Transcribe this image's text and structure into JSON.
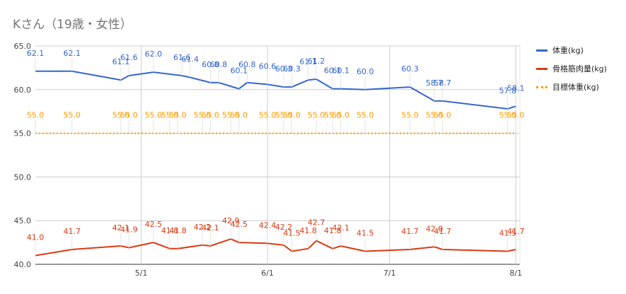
{
  "title": "Kさん（19歳・女性）",
  "chart_data": {
    "type": "line",
    "ylim": [
      40,
      65
    ],
    "yticks": [
      {
        "value": 40,
        "label": "40.0"
      },
      {
        "value": 45,
        "label": "45.0"
      },
      {
        "value": 50,
        "label": "50.0"
      },
      {
        "value": 55,
        "label": "55.0"
      },
      {
        "value": 60,
        "label": "60.0"
      },
      {
        "value": 65,
        "label": "65.0"
      }
    ],
    "xlim": [
      "2019-04-05",
      "2019-08-02"
    ],
    "xticks": [
      {
        "date": "2019-05-01",
        "label": "5/1"
      },
      {
        "date": "2019-06-01",
        "label": "6/1"
      },
      {
        "date": "2019-07-01",
        "label": "7/1"
      },
      {
        "date": "2019-08-01",
        "label": "8/1"
      }
    ],
    "grid": true,
    "legend_position": "right",
    "series": [
      {
        "name": "体重(kg)",
        "color": "#3366cc",
        "style": "solid",
        "x": [
          "2019-04-05",
          "2019-04-14",
          "2019-04-26",
          "2019-04-28",
          "2019-05-04",
          "2019-05-11",
          "2019-05-13",
          "2019-05-18",
          "2019-05-20",
          "2019-05-25",
          "2019-05-27",
          "2019-06-01",
          "2019-06-05",
          "2019-06-07",
          "2019-06-11",
          "2019-06-13",
          "2019-06-17",
          "2019-06-19",
          "2019-06-25",
          "2019-07-06",
          "2019-07-12",
          "2019-07-14",
          "2019-07-30",
          "2019-08-01"
        ],
        "values": [
          62.1,
          62.1,
          61.1,
          61.6,
          62.0,
          61.6,
          61.4,
          60.8,
          60.8,
          60.1,
          60.8,
          60.6,
          60.3,
          60.3,
          61.1,
          61.2,
          60.1,
          60.1,
          60.0,
          60.3,
          58.7,
          58.7,
          57.8,
          58.1
        ]
      },
      {
        "name": "骨格筋肉量(kg)",
        "color": "#dc3912",
        "style": "solid",
        "x": [
          "2019-04-05",
          "2019-04-14",
          "2019-04-26",
          "2019-04-28",
          "2019-05-04",
          "2019-05-08",
          "2019-05-10",
          "2019-05-16",
          "2019-05-18",
          "2019-05-23",
          "2019-05-25",
          "2019-06-01",
          "2019-06-05",
          "2019-06-07",
          "2019-06-11",
          "2019-06-13",
          "2019-06-17",
          "2019-06-19",
          "2019-06-25",
          "2019-07-06",
          "2019-07-12",
          "2019-07-14",
          "2019-07-30",
          "2019-08-01"
        ],
        "values": [
          41.0,
          41.7,
          42.1,
          41.9,
          42.5,
          41.8,
          41.8,
          42.2,
          42.1,
          42.9,
          42.5,
          42.4,
          42.2,
          41.5,
          41.8,
          42.7,
          41.8,
          42.1,
          41.5,
          41.7,
          42.0,
          41.7,
          41.5,
          41.7
        ]
      },
      {
        "name": "目標体重(kg)",
        "color": "#ff9900",
        "style": "dotted",
        "x": [
          "2019-04-05",
          "2019-04-14",
          "2019-04-26",
          "2019-04-28",
          "2019-05-04",
          "2019-05-08",
          "2019-05-10",
          "2019-05-16",
          "2019-05-18",
          "2019-05-23",
          "2019-05-25",
          "2019-06-01",
          "2019-06-05",
          "2019-06-07",
          "2019-06-13",
          "2019-06-17",
          "2019-06-19",
          "2019-06-25",
          "2019-07-06",
          "2019-07-12",
          "2019-07-14",
          "2019-07-30",
          "2019-08-01"
        ],
        "values": [
          55.0,
          55.0,
          55.0,
          55.0,
          55.0,
          55.0,
          55.0,
          55.0,
          55.0,
          55.0,
          55.0,
          55.0,
          55.0,
          55.0,
          55.0,
          55.0,
          55.0,
          55.0,
          55.0,
          55.0,
          55.0,
          55.0,
          55.0
        ]
      }
    ]
  }
}
